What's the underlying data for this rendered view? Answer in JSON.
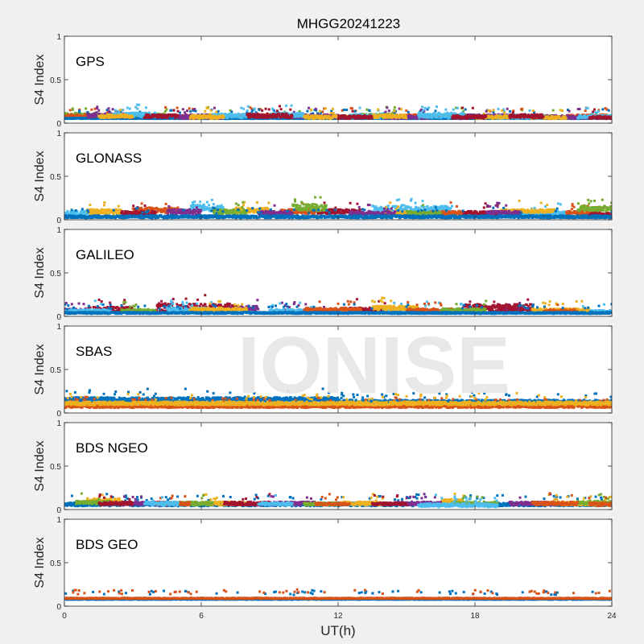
{
  "figure": {
    "title": "MHGG20241223",
    "xlabel": "UT(h)",
    "watermark": "IONISE"
  },
  "colors": {
    "background": "#f0f0f0",
    "axes": "#ffffff",
    "watermark": "#e6e6e6",
    "palette": [
      "#0072BD",
      "#D95319",
      "#EDB120",
      "#7E2F8E",
      "#77AC30",
      "#4DBEEE",
      "#A2142F"
    ]
  },
  "chart_data": [
    {
      "type": "scatter",
      "label": "GPS",
      "ylabel": "S4 Index",
      "xlim": [
        0,
        24
      ],
      "ylim": [
        0,
        1
      ],
      "xticks": [
        0,
        6,
        12,
        18,
        24
      ],
      "yticks": [
        0,
        0.5,
        1
      ],
      "xticklabels": [
        "0",
        "6",
        "12",
        "18",
        "24"
      ],
      "yticklabels": [
        "0",
        "0.5",
        "1"
      ],
      "show_xticklabels": false,
      "series": [
        {
          "color": "#77AC30",
          "segments": [
            [
              0.0,
              1.5,
              0.07,
              0.12
            ],
            [
              3.0,
              4.5,
              0.06,
              0.11
            ],
            [
              6.0,
              7.5,
              0.05,
              0.1
            ],
            [
              9.5,
              11.0,
              0.05,
              0.09
            ],
            [
              13.0,
              14.5,
              0.06,
              0.11
            ],
            [
              16.5,
              18.0,
              0.06,
              0.1
            ],
            [
              20.0,
              21.5,
              0.05,
              0.09
            ]
          ]
        },
        {
          "color": "#D95319",
          "segments": [
            [
              0.0,
              2.5,
              0.06,
              0.1
            ],
            [
              4.0,
              6.0,
              0.05,
              0.09
            ],
            [
              7.5,
              9.0,
              0.06,
              0.1
            ],
            [
              11.0,
              13.0,
              0.05,
              0.09
            ],
            [
              14.5,
              16.5,
              0.06,
              0.1
            ],
            [
              18.5,
              20.5,
              0.05,
              0.09
            ],
            [
              22.0,
              24.0,
              0.06,
              0.1
            ]
          ]
        },
        {
          "color": "#0072BD",
          "segments": [
            [
              0.0,
              24.0,
              0.05,
              0.06
            ]
          ]
        },
        {
          "color": "#7E2F8E",
          "segments": [
            [
              1.0,
              3.0,
              0.06,
              0.11
            ],
            [
              5.0,
              7.0,
              0.05,
              0.1
            ],
            [
              10.0,
              12.0,
              0.06,
              0.1
            ],
            [
              14.0,
              16.0,
              0.05,
              0.09
            ],
            [
              17.5,
              19.5,
              0.06,
              0.1
            ],
            [
              21.0,
              23.0,
              0.05,
              0.09
            ]
          ]
        },
        {
          "color": "#4DBEEE",
          "segments": [
            [
              2.0,
              4.0,
              0.07,
              0.12
            ],
            [
              6.5,
              8.5,
              0.06,
              0.11
            ],
            [
              9.0,
              10.5,
              0.07,
              0.12
            ],
            [
              12.5,
              14.0,
              0.06,
              0.11
            ],
            [
              15.5,
              17.5,
              0.06,
              0.12
            ],
            [
              19.0,
              21.0,
              0.05,
              0.1
            ],
            [
              22.5,
              24.0,
              0.05,
              0.09
            ]
          ]
        },
        {
          "color": "#EDB120",
          "segments": [
            [
              1.5,
              3.0,
              0.06,
              0.1
            ],
            [
              5.5,
              7.0,
              0.05,
              0.09
            ],
            [
              10.5,
              12.0,
              0.05,
              0.09
            ],
            [
              13.5,
              15.0,
              0.06,
              0.1
            ],
            [
              18.0,
              19.5,
              0.05,
              0.09
            ],
            [
              20.5,
              22.0,
              0.05,
              0.08
            ]
          ]
        },
        {
          "color": "#A2142F",
          "segments": [
            [
              3.5,
              5.0,
              0.06,
              0.1
            ],
            [
              8.0,
              10.0,
              0.06,
              0.11
            ],
            [
              12.0,
              13.5,
              0.05,
              0.09
            ],
            [
              17.0,
              18.5,
              0.05,
              0.09
            ],
            [
              19.5,
              21.0,
              0.06,
              0.1
            ],
            [
              23.0,
              24.0,
              0.05,
              0.08
            ]
          ]
        }
      ]
    },
    {
      "type": "scatter",
      "label": "GLONASS",
      "ylabel": "S4 Index",
      "xlim": [
        0,
        24
      ],
      "ylim": [
        0,
        1
      ],
      "xticks": [
        0,
        6,
        12,
        18,
        24
      ],
      "yticks": [
        0,
        0.5,
        1
      ],
      "xticklabels": [
        "0",
        "6",
        "12",
        "18",
        "24"
      ],
      "yticklabels": [
        "0",
        "0.5",
        "1"
      ],
      "show_xticklabels": false,
      "series": [
        {
          "color": "#4DBEEE",
          "segments": [
            [
              0.0,
              1.5,
              0.05,
              0.1
            ],
            [
              5.5,
              7.0,
              0.1,
              0.18
            ],
            [
              13.5,
              17.0,
              0.08,
              0.16
            ],
            [
              20.0,
              22.0,
              0.06,
              0.1
            ]
          ]
        },
        {
          "color": "#EDB120",
          "segments": [
            [
              1.0,
              2.5,
              0.06,
              0.12
            ],
            [
              7.5,
              9.0,
              0.08,
              0.14
            ],
            [
              14.0,
              15.0,
              0.06,
              0.1
            ],
            [
              19.0,
              21.5,
              0.08,
              0.12
            ]
          ]
        },
        {
          "color": "#D95319",
          "segments": [
            [
              3.0,
              5.0,
              0.08,
              0.14
            ],
            [
              9.5,
              11.0,
              0.07,
              0.12
            ],
            [
              16.0,
              17.5,
              0.05,
              0.1
            ],
            [
              22.0,
              23.5,
              0.06,
              0.1
            ]
          ]
        },
        {
          "color": "#A2142F",
          "segments": [
            [
              2.5,
              4.0,
              0.05,
              0.1
            ],
            [
              11.0,
              13.0,
              0.07,
              0.12
            ],
            [
              17.5,
              19.0,
              0.06,
              0.1
            ],
            [
              23.0,
              24.0,
              0.05,
              0.08
            ]
          ]
        },
        {
          "color": "#7E2F8E",
          "segments": [
            [
              4.5,
              6.0,
              0.06,
              0.12
            ],
            [
              8.5,
              10.0,
              0.06,
              0.1
            ],
            [
              12.5,
              14.5,
              0.05,
              0.1
            ],
            [
              18.5,
              20.0,
              0.06,
              0.1
            ]
          ]
        },
        {
          "color": "#77AC30",
          "segments": [
            [
              6.5,
              8.0,
              0.06,
              0.12
            ],
            [
              10.0,
              11.5,
              0.1,
              0.18
            ],
            [
              15.0,
              16.5,
              0.06,
              0.1
            ],
            [
              22.5,
              24.0,
              0.1,
              0.16
            ]
          ]
        },
        {
          "color": "#0072BD",
          "segments": [
            [
              0.0,
              24.0,
              0.02,
              0.05
            ]
          ]
        }
      ]
    },
    {
      "type": "scatter",
      "label": "GALILEO",
      "ylabel": "S4 Index",
      "xlim": [
        0,
        24
      ],
      "ylim": [
        0,
        1
      ],
      "xticks": [
        0,
        6,
        12,
        18,
        24
      ],
      "yticks": [
        0,
        0.5,
        1
      ],
      "xticklabels": [
        "0",
        "6",
        "12",
        "18",
        "24"
      ],
      "yticklabels": [
        "0",
        "0.5",
        "1"
      ],
      "show_xticklabels": false,
      "series": [
        {
          "color": "#7E2F8E",
          "segments": [
            [
              0.0,
              1.0,
              0.05,
              0.09
            ],
            [
              7.0,
              8.5,
              0.07,
              0.12
            ],
            [
              9.5,
              12.0,
              0.04,
              0.08
            ],
            [
              19.0,
              20.0,
              0.06,
              0.1
            ]
          ]
        },
        {
          "color": "#A2142F",
          "segments": [
            [
              1.0,
              3.0,
              0.04,
              0.11
            ],
            [
              4.0,
              7.5,
              0.05,
              0.15
            ],
            [
              12.5,
              14.5,
              0.06,
              0.1
            ],
            [
              17.5,
              20.5,
              0.05,
              0.14
            ]
          ]
        },
        {
          "color": "#4DBEEE",
          "segments": [
            [
              0.0,
              2.0,
              0.04,
              0.08
            ],
            [
              4.5,
              6.5,
              0.06,
              0.1
            ],
            [
              9.0,
              11.0,
              0.04,
              0.08
            ],
            [
              14.0,
              18.0,
              0.04,
              0.08
            ],
            [
              22.0,
              24.0,
              0.04,
              0.07
            ]
          ]
        },
        {
          "color": "#EDB120",
          "segments": [
            [
              5.5,
              8.0,
              0.06,
              0.1
            ],
            [
              13.5,
              15.5,
              0.07,
              0.12
            ],
            [
              20.5,
              23.0,
              0.05,
              0.09
            ]
          ]
        },
        {
          "color": "#D95319",
          "segments": [
            [
              10.5,
              13.0,
              0.06,
              0.1
            ],
            [
              15.0,
              17.0,
              0.05,
              0.09
            ],
            [
              21.0,
              22.5,
              0.04,
              0.08
            ]
          ]
        },
        {
          "color": "#77AC30",
          "segments": [
            [
              2.5,
              4.0,
              0.05,
              0.08
            ],
            [
              16.5,
              18.5,
              0.05,
              0.09
            ]
          ]
        },
        {
          "color": "#0072BD",
          "segments": [
            [
              0.0,
              24.0,
              0.03,
              0.05
            ]
          ]
        }
      ]
    },
    {
      "type": "scatter",
      "label": "SBAS",
      "ylabel": "S4 Index",
      "xlim": [
        0,
        24
      ],
      "ylim": [
        0,
        1
      ],
      "xticks": [
        0,
        6,
        12,
        18,
        24
      ],
      "yticks": [
        0,
        0.5,
        1
      ],
      "xticklabels": [
        "0",
        "6",
        "12",
        "18",
        "24"
      ],
      "yticklabels": [
        "0",
        "0.5",
        "1"
      ],
      "show_xticklabels": false,
      "series": [
        {
          "color": "#0072BD",
          "segments": [
            [
              0.0,
              12.0,
              0.13,
              0.18
            ],
            [
              12.0,
              24.0,
              0.11,
              0.15
            ]
          ]
        },
        {
          "color": "#D95319",
          "segments": [
            [
              0.0,
              24.0,
              0.06,
              0.09
            ]
          ]
        },
        {
          "color": "#EDB120",
          "segments": [
            [
              0.0,
              24.0,
              0.09,
              0.13
            ]
          ]
        }
      ]
    },
    {
      "type": "scatter",
      "label": "BDS NGEO",
      "ylabel": "S4 Index",
      "xlim": [
        0,
        24
      ],
      "ylim": [
        0,
        1
      ],
      "xticks": [
        0,
        6,
        12,
        18,
        24
      ],
      "yticks": [
        0,
        0.5,
        1
      ],
      "xticklabels": [
        "0",
        "6",
        "12",
        "18",
        "24"
      ],
      "yticklabels": [
        "0",
        "0.5",
        "1"
      ],
      "show_xticklabels": false,
      "series": [
        {
          "color": "#0072BD",
          "segments": [
            [
              0.0,
              24.0,
              0.04,
              0.08
            ]
          ]
        },
        {
          "color": "#EDB120",
          "segments": [
            [
              1.0,
              2.5,
              0.07,
              0.13
            ],
            [
              6.0,
              8.0,
              0.05,
              0.09
            ],
            [
              12.0,
              14.0,
              0.05,
              0.09
            ],
            [
              16.5,
              17.5,
              0.07,
              0.12
            ],
            [
              21.0,
              24.0,
              0.05,
              0.09
            ]
          ]
        },
        {
          "color": "#7E2F8E",
          "segments": [
            [
              2.5,
              4.5,
              0.05,
              0.09
            ],
            [
              9.0,
              11.0,
              0.05,
              0.09
            ],
            [
              14.5,
              16.5,
              0.05,
              0.09
            ],
            [
              19.5,
              21.5,
              0.05,
              0.09
            ]
          ]
        },
        {
          "color": "#77AC30",
          "segments": [
            [
              0.5,
              2.0,
              0.06,
              0.1
            ],
            [
              5.0,
              6.5,
              0.05,
              0.09
            ],
            [
              10.5,
              12.0,
              0.05,
              0.08
            ],
            [
              17.0,
              19.0,
              0.05,
              0.09
            ],
            [
              22.5,
              24.0,
              0.06,
              0.1
            ]
          ]
        },
        {
          "color": "#A2142F",
          "segments": [
            [
              1.5,
              3.0,
              0.05,
              0.09
            ],
            [
              7.0,
              9.0,
              0.05,
              0.09
            ],
            [
              13.5,
              15.0,
              0.05,
              0.08
            ]
          ]
        },
        {
          "color": "#D95319",
          "segments": [
            [
              4.0,
              5.5,
              0.05,
              0.09
            ],
            [
              11.0,
              12.5,
              0.05,
              0.08
            ],
            [
              20.5,
              22.5,
              0.05,
              0.09
            ],
            [
              23.0,
              24.0,
              0.04,
              0.08
            ]
          ]
        },
        {
          "color": "#4DBEEE",
          "segments": [
            [
              3.5,
              5.0,
              0.05,
              0.09
            ],
            [
              8.5,
              10.0,
              0.05,
              0.08
            ],
            [
              15.5,
              19.0,
              0.03,
              0.07
            ]
          ]
        }
      ]
    },
    {
      "type": "scatter",
      "label": "BDS GEO",
      "ylabel": "S4 Index",
      "xlim": [
        0,
        24
      ],
      "ylim": [
        0,
        1
      ],
      "xticks": [
        0,
        6,
        12,
        18,
        24
      ],
      "yticks": [
        0,
        0.5,
        1
      ],
      "xticklabels": [
        "0",
        "6",
        "12",
        "18",
        "24"
      ],
      "yticklabels": [
        "0",
        "0.5",
        "1"
      ],
      "show_xticklabels": true,
      "series": [
        {
          "color": "#0072BD",
          "segments": [
            [
              0.0,
              24.0,
              0.075,
              0.085
            ]
          ]
        },
        {
          "color": "#D95319",
          "segments": [
            [
              0.0,
              24.0,
              0.085,
              0.095
            ]
          ]
        }
      ]
    }
  ]
}
